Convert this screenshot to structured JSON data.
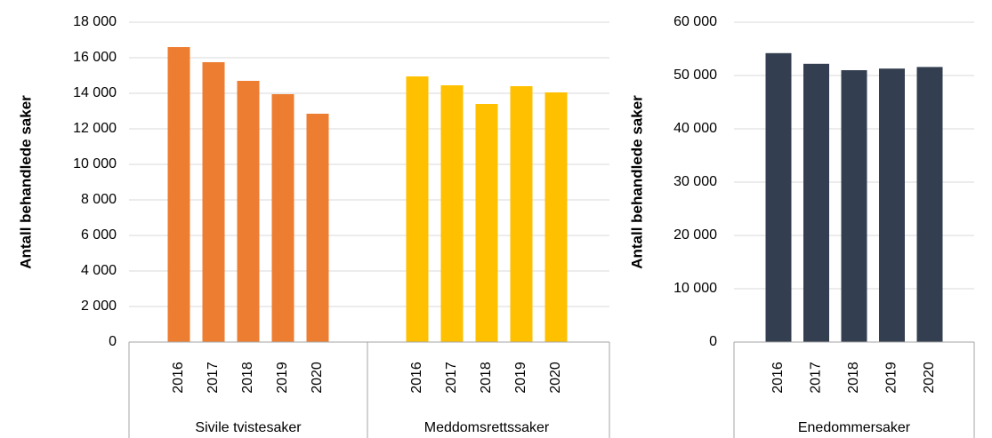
{
  "chart_data": [
    {
      "type": "bar",
      "y_label": "Antall behandlede saker",
      "categories": [
        "2016",
        "2017",
        "2018",
        "2019",
        "2020"
      ],
      "groups": [
        {
          "name": "Sivile tvistesaker",
          "color": "#ed7d31",
          "values": [
            16600,
            15750,
            14700,
            13950,
            12850
          ]
        },
        {
          "name": "Meddomsrettssaker",
          "color": "#ffc000",
          "values": [
            14950,
            14450,
            13400,
            14400,
            14050
          ]
        }
      ],
      "ylim": [
        0,
        18000
      ],
      "yticks": [
        0,
        {
          "value": 2000,
          "label": "2 000"
        },
        {
          "value": 4000,
          "label": "4 000"
        },
        {
          "value": 6000,
          "label": "6 000"
        },
        {
          "value": 8000,
          "label": "8 000"
        },
        {
          "value": 10000,
          "label": "10 000"
        },
        {
          "value": 12000,
          "label": "12 000"
        },
        {
          "value": 14000,
          "label": "14 000"
        },
        {
          "value": 16000,
          "label": "16 000"
        },
        {
          "value": 18000,
          "label": "18 000"
        }
      ],
      "grid": true
    },
    {
      "type": "bar",
      "y_label": "Antall behandlede saker",
      "categories": [
        "2016",
        "2017",
        "2018",
        "2019",
        "2020"
      ],
      "groups": [
        {
          "name": "Enedommersaker",
          "color": "#333f50",
          "values": [
            54200,
            52200,
            51000,
            51300,
            51600
          ]
        }
      ],
      "ylim": [
        0,
        60000
      ],
      "yticks": [
        0,
        {
          "value": 10000,
          "label": "10 000"
        },
        {
          "value": 20000,
          "label": "20 000"
        },
        {
          "value": 30000,
          "label": "30 000"
        },
        {
          "value": 40000,
          "label": "40 000"
        },
        {
          "value": 50000,
          "label": "50 000"
        },
        {
          "value": 60000,
          "label": "60 000"
        }
      ],
      "grid": true
    }
  ]
}
